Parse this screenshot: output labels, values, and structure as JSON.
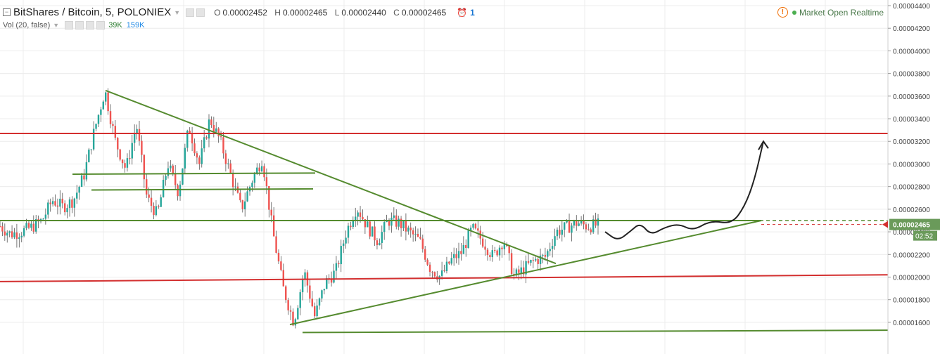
{
  "header": {
    "symbol": "BitShares / Bitcoin, 5, POLONIEX",
    "ohlc": [
      {
        "key": "O",
        "value": "0.00002452"
      },
      {
        "key": "H",
        "value": "0.00002465"
      },
      {
        "key": "L",
        "value": "0.00002440"
      },
      {
        "key": "C",
        "value": "0.00002465"
      }
    ],
    "alert_count": "1",
    "volume": {
      "label": "Vol (20, false)",
      "value1": "39K",
      "value2": "159K"
    },
    "status_text": "Market Open Realtime",
    "warn_glyph": "!"
  },
  "chart_data": {
    "type": "candlestick",
    "title": "BitShares / Bitcoin, 5, POLONIEX",
    "ylim": [
      1.5e-05,
      4.4e-05
    ],
    "y_ticks": [
      "0.00004400",
      "0.00004200",
      "0.00004000",
      "0.00003800",
      "0.00003600",
      "0.00003400",
      "0.00003200",
      "0.00003000",
      "0.00002800",
      "0.00002600",
      "0.00002400",
      "0.00002200",
      "0.00002000",
      "0.00001800",
      "0.00001600"
    ],
    "grid": true,
    "last_price": "0.00002465",
    "countdown": "02:52",
    "close_path": [
      2.45e-05,
      2.38e-05,
      2.4e-05,
      2.44e-05,
      2.5e-05,
      2.68e-05,
      2.62e-05,
      2.68e-05,
      2.9e-05,
      3.3e-05,
      3.65e-05,
      3.2e-05,
      2.95e-05,
      3.35e-05,
      2.7e-05,
      2.55e-05,
      3e-05,
      2.75e-05,
      3.33e-05,
      3e-05,
      3.4e-05,
      3.2e-05,
      2.9e-05,
      2.6e-05,
      2.85e-05,
      3.05e-05,
      2.4e-05,
      1.9e-05,
      1.6e-05,
      2.05e-05,
      1.65e-05,
      1.95e-05,
      2.05e-05,
      2.4e-05,
      2.62e-05,
      2.45e-05,
      2.32e-05,
      2.5e-05,
      2.48e-05,
      2.4e-05,
      2.32e-05,
      2.08e-05,
      2e-05,
      2.15e-05,
      2.22e-05,
      2.43e-05,
      2.32e-05,
      2.18e-05,
      2.33e-05,
      2e-05,
      2.08e-05,
      2.15e-05,
      2.18e-05,
      2.4e-05,
      2.44e-05,
      2.48e-05,
      2.45e-05,
      2.46e-05
    ],
    "lines": [
      {
        "name": "resistance-red",
        "color": "#d32f2f",
        "points": [
          [
            0,
            3.27e-05
          ],
          [
            1262,
            3.27e-05
          ]
        ]
      },
      {
        "name": "support-red",
        "color": "#d32f2f",
        "points": [
          [
            0,
            1.96e-05
          ],
          [
            1262,
            2.02e-05
          ]
        ]
      },
      {
        "name": "neckline-green-dashed",
        "color": "#558b2f",
        "dashed": true,
        "points": [
          [
            0,
            2.5e-05
          ],
          [
            1262,
            2.5e-05
          ]
        ]
      },
      {
        "name": "neckline-green",
        "color": "#558b2f",
        "points": [
          [
            0,
            2.5e-05
          ],
          [
            1082,
            2.5e-05
          ]
        ]
      },
      {
        "name": "range-top",
        "color": "#558b2f",
        "points": [
          [
            103,
            2.91e-05
          ],
          [
            448,
            2.92e-05
          ]
        ]
      },
      {
        "name": "range-bottom",
        "color": "#558b2f",
        "points": [
          [
            130,
            2.77e-05
          ],
          [
            445,
            2.78e-05
          ]
        ]
      },
      {
        "name": "downtrend",
        "color": "#558b2f",
        "points": [
          [
            150,
            3.65e-05
          ],
          [
            790,
            2.12e-05
          ]
        ]
      },
      {
        "name": "uptrend",
        "color": "#558b2f",
        "points": [
          [
            412,
            1.58e-05
          ],
          [
            1082,
            2.5e-05
          ]
        ]
      },
      {
        "name": "bottom-line",
        "color": "#558b2f",
        "points": [
          [
            430,
            1.51e-05
          ],
          [
            1262,
            1.53e-05
          ]
        ]
      }
    ],
    "colors": {
      "up": "#26a69a",
      "down": "#ef5350",
      "drawn_line": "#558b2f",
      "red_line": "#d32f2f"
    }
  }
}
